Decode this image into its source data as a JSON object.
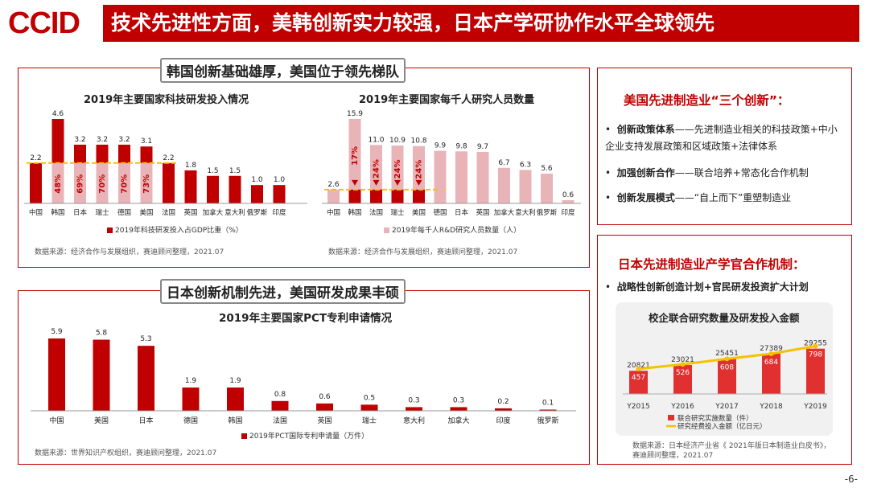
{
  "header": {
    "logo": "CCID",
    "title": "技术先进性方面，美韩创新实力较强，日本产学研协作水平全球领先"
  },
  "section1": {
    "tag": "韩国创新基础雄厚，美国位于领先梯队"
  },
  "section2": {
    "tag": "日本创新机制先进，美国研发成果丰硕"
  },
  "page_number": "-6-",
  "colors": {
    "primary": "#c00000",
    "light": "#e8b4b8",
    "accent": "#f5c200"
  },
  "chart_data": [
    {
      "id": "rd-investment",
      "type": "bar",
      "title": "2019年主要国家科技研发投入情况",
      "categories": [
        "中国",
        "韩国",
        "日本",
        "瑞士",
        "德国",
        "美国",
        "法国",
        "英国",
        "加拿大",
        "意大利",
        "俄罗斯",
        "印度"
      ],
      "series": [
        {
          "name": "2019年科技研发投入占GDP比重（%）",
          "values": [
            2.2,
            4.6,
            3.2,
            3.2,
            3.2,
            3.1,
            2.2,
            1.8,
            1.5,
            1.5,
            1.0,
            1.0
          ]
        }
      ],
      "value_labels": [
        "2.2",
        "4.6",
        "3.2",
        "3.2",
        "3.2",
        "3.1",
        "2.2",
        "1.8",
        "1.5",
        "1.5",
        "1.0",
        "1.0"
      ],
      "inner_labels": [
        "",
        "48%",
        "69%",
        "70%",
        "70%",
        "73%",
        "",
        "",
        "",
        "",
        "",
        ""
      ],
      "reference_line": 2.2,
      "source": "数据来源：经济合作与发展组织，赛迪顾问整理，2021.07"
    },
    {
      "id": "researchers",
      "type": "bar",
      "title": "2019年主要国家每千人研究人员数量",
      "categories": [
        "中国",
        "韩国",
        "法国",
        "瑞士",
        "美国",
        "德国",
        "日本",
        "英国",
        "加拿大",
        "意大利",
        "俄罗斯",
        "印度"
      ],
      "series": [
        {
          "name": "2019年每千人R&D研究人员数量（人）",
          "values": [
            2.6,
            15.9,
            11.0,
            10.9,
            10.8,
            9.9,
            9.8,
            9.7,
            6.7,
            6.3,
            5.6,
            0.6
          ]
        }
      ],
      "value_labels": [
        "2.6",
        "15.9",
        "11.0",
        "10.9",
        "10.8",
        "9.9",
        "9.8",
        "9.7",
        "6.7",
        "6.3",
        "5.6",
        "0.6"
      ],
      "inner_labels": [
        "",
        "17%",
        "24%",
        "24%",
        "24%",
        "",
        "",
        "",
        "",
        "",
        "",
        ""
      ],
      "reference_line": 2.6,
      "source": "数据来源：经济合作与发展组织，赛迪顾问整理，2021.07"
    },
    {
      "id": "pct",
      "type": "bar",
      "title": "2019年主要国家PCT专利申请情况",
      "categories": [
        "中国",
        "美国",
        "日本",
        "德国",
        "韩国",
        "法国",
        "英国",
        "瑞士",
        "意大利",
        "加拿大",
        "印度",
        "俄罗斯"
      ],
      "series": [
        {
          "name": "2019年PCT国际专利申请量（万件）",
          "values": [
            5.9,
            5.8,
            5.3,
            1.9,
            1.9,
            0.8,
            0.6,
            0.5,
            0.3,
            0.3,
            0.2,
            0.1
          ]
        }
      ],
      "value_labels": [
        "5.9",
        "5.8",
        "5.3",
        "1.9",
        "1.9",
        "0.8",
        "0.6",
        "0.5",
        "0.3",
        "0.3",
        "0.2",
        "0.1"
      ],
      "source": "数据来源：世界知识产权组织，赛迪顾问整理，2021.07"
    },
    {
      "id": "japan-collab",
      "type": "bar",
      "title": "校企联合研究数量及研发投入金额",
      "categories": [
        "Y2015",
        "Y2016",
        "Y2017",
        "Y2018",
        "Y2019"
      ],
      "series": [
        {
          "name": "联合研究实施数量（件）",
          "values": [
            20821,
            23021,
            25451,
            27389,
            29255
          ]
        },
        {
          "name": "研究经费投入金额（亿日元）",
          "values": [
            457,
            526,
            608,
            684,
            798
          ]
        }
      ],
      "bar_labels": [
        "20821",
        "23021",
        "25451",
        "27389",
        "29255"
      ],
      "line_labels": [
        "457",
        "526",
        "608",
        "684",
        "798"
      ],
      "source": "数据来源：日本经济产业省《 2021年版日本制造业白皮书》，赛迪顾问整理，2021.07"
    }
  ],
  "us_panel": {
    "title": "美国先进制造业“三个创新”：",
    "items": [
      {
        "bold": "创新政策体系",
        "text": "——先进制造业相关的科技政策+中小企业支持发展政策和区域政策+法律体系"
      },
      {
        "bold": "加强创新合作",
        "text": "——联合培养+常态化合作机制"
      },
      {
        "bold": "创新发展模式",
        "text": "——“自上而下”重塑制造业"
      }
    ]
  },
  "japan_panel": {
    "title": "日本先进制造业产学官合作机制：",
    "items": [
      {
        "bold": "战略性创新创造计划+官民研发投资扩大计划",
        "text": ""
      }
    ]
  }
}
